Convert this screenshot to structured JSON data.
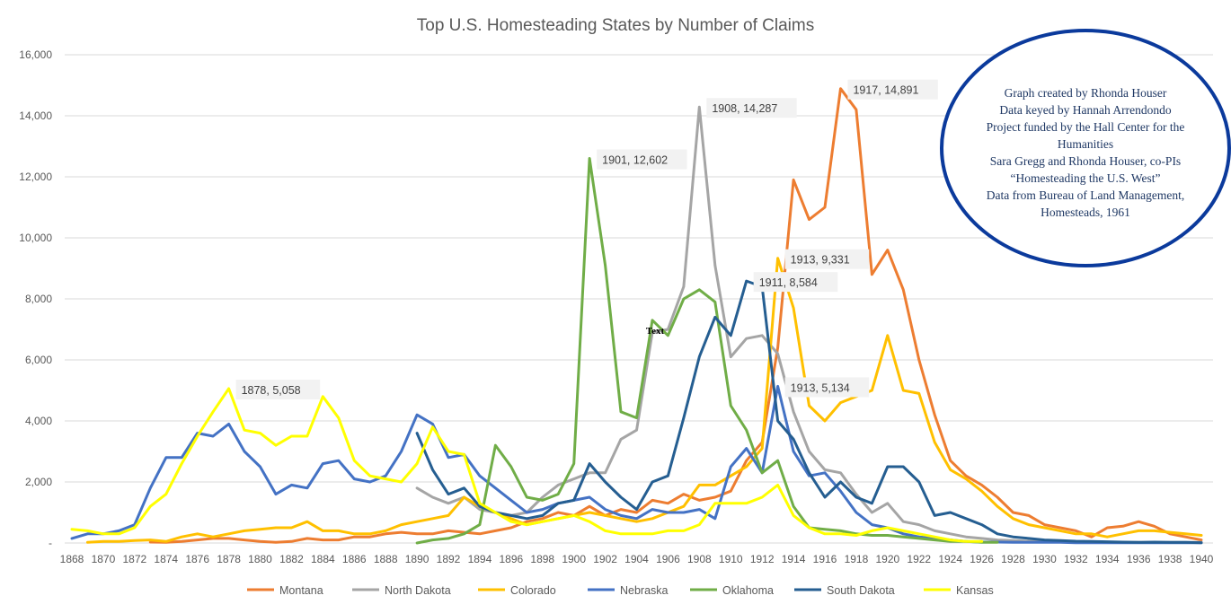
{
  "chart_data": {
    "type": "line",
    "title": "Top U.S. Homesteading States by Number of Claims",
    "xlabel": "",
    "ylabel": "",
    "xlim": [
      1868,
      1940
    ],
    "ylim": [
      0,
      16000
    ],
    "x_ticks": [
      "1868",
      "1870",
      "1872",
      "1874",
      "1876",
      "1878",
      "1880",
      "1882",
      "1884",
      "1886",
      "1888",
      "1890",
      "1892",
      "1894",
      "1896",
      "1898",
      "1900",
      "1902",
      "1904",
      "1906",
      "1908",
      "1910",
      "1912",
      "1914",
      "1916",
      "1918",
      "1920",
      "1922",
      "1924",
      "1926",
      "1928",
      "1930",
      "1932",
      "1934",
      "1936",
      "1938",
      "1940"
    ],
    "y_ticks": [
      {
        "value": 16000,
        "label": "16,000"
      },
      {
        "value": 14000,
        "label": "14,000"
      },
      {
        "value": 12000,
        "label": "12,000"
      },
      {
        "value": 10000,
        "label": "10,000"
      },
      {
        "value": 8000,
        "label": "8,000"
      },
      {
        "value": 6000,
        "label": "6,000"
      },
      {
        "value": 4000,
        "label": "4,000"
      },
      {
        "value": 2000,
        "label": "2,000"
      },
      {
        "value": 0,
        "label": "-"
      }
    ],
    "grid": true,
    "legend_position": "bottom",
    "series": [
      {
        "name": "Montana",
        "color": "#ED7D31",
        "x": [
          1873,
          1874,
          1875,
          1876,
          1877,
          1878,
          1879,
          1880,
          1881,
          1882,
          1883,
          1884,
          1885,
          1886,
          1887,
          1888,
          1889,
          1890,
          1891,
          1892,
          1893,
          1894,
          1895,
          1896,
          1897,
          1898,
          1899,
          1900,
          1901,
          1902,
          1903,
          1904,
          1905,
          1906,
          1907,
          1908,
          1909,
          1910,
          1911,
          1912,
          1913,
          1914,
          1915,
          1916,
          1917,
          1918,
          1919,
          1920,
          1921,
          1922,
          1923,
          1924,
          1925,
          1926,
          1927,
          1928,
          1929,
          1930,
          1931,
          1932,
          1933,
          1934,
          1935,
          1936,
          1937,
          1938,
          1939,
          1940
        ],
        "y": [
          30,
          20,
          50,
          100,
          150,
          150,
          100,
          50,
          20,
          50,
          150,
          100,
          100,
          200,
          200,
          300,
          350,
          300,
          300,
          400,
          350,
          300,
          400,
          500,
          700,
          800,
          1000,
          900,
          1200,
          900,
          1100,
          1000,
          1400,
          1300,
          1600,
          1400,
          1500,
          1700,
          2700,
          3300,
          6400,
          11900,
          10600,
          11000,
          14891,
          14200,
          8800,
          9600,
          8300,
          6000,
          4200,
          2700,
          2200,
          1900,
          1500,
          1000,
          900,
          600,
          500,
          400,
          200,
          500,
          550,
          700,
          550,
          300,
          200,
          100
        ]
      },
      {
        "name": "North Dakota",
        "color": "#A5A5A5",
        "x": [
          1890,
          1891,
          1892,
          1893,
          1894,
          1895,
          1896,
          1897,
          1898,
          1899,
          1900,
          1901,
          1902,
          1903,
          1904,
          1905,
          1906,
          1907,
          1908,
          1909,
          1910,
          1911,
          1912,
          1913,
          1914,
          1915,
          1916,
          1917,
          1918,
          1919,
          1920,
          1921,
          1922,
          1923,
          1924,
          1925,
          1926,
          1927,
          1928,
          1929,
          1930,
          1931,
          1932,
          1933,
          1934,
          1935,
          1936,
          1937,
          1938,
          1939,
          1940
        ],
        "y": [
          1800,
          1500,
          1300,
          1500,
          1100,
          1000,
          900,
          1000,
          1500,
          1900,
          2100,
          2300,
          2300,
          3400,
          3700,
          6900,
          7000,
          8400,
          14287,
          9100,
          6100,
          6700,
          6800,
          6200,
          4300,
          3000,
          2400,
          2300,
          1600,
          1000,
          1300,
          700,
          600,
          400,
          300,
          200,
          150,
          100,
          80,
          60,
          50,
          40,
          30,
          20,
          20,
          20,
          20,
          20,
          20,
          20,
          20
        ]
      },
      {
        "name": "Colorado",
        "color": "#FFC000",
        "x": [
          1869,
          1870,
          1871,
          1872,
          1873,
          1874,
          1875,
          1876,
          1877,
          1878,
          1879,
          1880,
          1881,
          1882,
          1883,
          1884,
          1885,
          1886,
          1887,
          1888,
          1889,
          1890,
          1891,
          1892,
          1893,
          1894,
          1895,
          1896,
          1897,
          1898,
          1899,
          1900,
          1901,
          1902,
          1903,
          1904,
          1905,
          1906,
          1907,
          1908,
          1909,
          1910,
          1911,
          1912,
          1913,
          1914,
          1915,
          1916,
          1917,
          1918,
          1919,
          1920,
          1921,
          1922,
          1923,
          1924,
          1925,
          1926,
          1927,
          1928,
          1929,
          1930,
          1931,
          1932,
          1933,
          1934,
          1935,
          1936,
          1937,
          1938,
          1939,
          1940
        ],
        "y": [
          20,
          50,
          50,
          80,
          100,
          50,
          200,
          300,
          200,
          300,
          400,
          450,
          500,
          500,
          700,
          400,
          400,
          300,
          300,
          400,
          600,
          700,
          800,
          900,
          1500,
          1200,
          1000,
          800,
          600,
          700,
          800,
          900,
          1000,
          900,
          800,
          700,
          800,
          1000,
          1200,
          1900,
          1900,
          2200,
          2500,
          3100,
          9331,
          7700,
          4500,
          4000,
          4600,
          4800,
          5000,
          6800,
          5000,
          4900,
          3300,
          2400,
          2100,
          1700,
          1200,
          800,
          600,
          500,
          400,
          300,
          300,
          200,
          300,
          400,
          400,
          350,
          300,
          250
        ]
      },
      {
        "name": "Nebraska",
        "color": "#4472C4",
        "x": [
          1868,
          1869,
          1870,
          1871,
          1872,
          1873,
          1874,
          1875,
          1876,
          1877,
          1878,
          1879,
          1880,
          1881,
          1882,
          1883,
          1884,
          1885,
          1886,
          1887,
          1888,
          1889,
          1890,
          1891,
          1892,
          1893,
          1894,
          1895,
          1896,
          1897,
          1898,
          1899,
          1900,
          1901,
          1902,
          1903,
          1904,
          1905,
          1906,
          1907,
          1908,
          1909,
          1910,
          1911,
          1912,
          1913,
          1914,
          1915,
          1916,
          1917,
          1918,
          1919,
          1920,
          1921,
          1922,
          1923,
          1924,
          1925,
          1926,
          1927,
          1928,
          1929,
          1930,
          1931,
          1932,
          1933,
          1934,
          1935,
          1936,
          1937,
          1938,
          1939,
          1940
        ],
        "y": [
          150,
          300,
          300,
          400,
          600,
          1800,
          2800,
          2800,
          3600,
          3500,
          3900,
          3000,
          2500,
          1600,
          1900,
          1800,
          2600,
          2700,
          2100,
          2000,
          2200,
          3000,
          4200,
          3900,
          2800,
          2900,
          2200,
          1800,
          1400,
          1000,
          1100,
          1300,
          1400,
          1500,
          1100,
          900,
          800,
          1100,
          1000,
          1000,
          1100,
          800,
          2500,
          3100,
          2300,
          5134,
          3000,
          2200,
          2300,
          1700,
          1000,
          600,
          500,
          300,
          200,
          150,
          100,
          50,
          30,
          30,
          20,
          20,
          20,
          20,
          10,
          10,
          10,
          10,
          10,
          10,
          10,
          10,
          10
        ]
      },
      {
        "name": "Oklahoma",
        "color": "#70AD47",
        "x": [
          1890,
          1891,
          1892,
          1893,
          1894,
          1895,
          1896,
          1897,
          1898,
          1899,
          1900,
          1901,
          1902,
          1903,
          1904,
          1905,
          1906,
          1907,
          1908,
          1909,
          1910,
          1911,
          1912,
          1913,
          1914,
          1915,
          1916,
          1917,
          1918,
          1919,
          1920,
          1921,
          1922,
          1923,
          1924,
          1925,
          1926,
          1927
        ],
        "y": [
          0,
          100,
          150,
          300,
          600,
          3200,
          2500,
          1500,
          1400,
          1600,
          2600,
          12602,
          9100,
          4300,
          4100,
          7300,
          6800,
          8000,
          8300,
          7900,
          4500,
          3700,
          2300,
          2700,
          1200,
          500,
          450,
          400,
          300,
          250,
          250,
          200,
          150,
          100,
          50,
          50,
          20,
          20
        ]
      },
      {
        "name": "South Dakota",
        "color": "#255E91",
        "x": [
          1890,
          1891,
          1892,
          1893,
          1894,
          1895,
          1896,
          1897,
          1898,
          1899,
          1900,
          1901,
          1902,
          1903,
          1904,
          1905,
          1906,
          1907,
          1908,
          1909,
          1910,
          1911,
          1912,
          1913,
          1914,
          1915,
          1916,
          1917,
          1918,
          1919,
          1920,
          1921,
          1922,
          1923,
          1924,
          1925,
          1926,
          1927,
          1928,
          1929,
          1930,
          1931,
          1932,
          1933,
          1934,
          1935,
          1936,
          1937,
          1938,
          1939,
          1940
        ],
        "y": [
          3600,
          2400,
          1600,
          1800,
          1200,
          1000,
          900,
          800,
          900,
          1300,
          1400,
          2600,
          2000,
          1500,
          1100,
          2000,
          2200,
          4100,
          6100,
          7400,
          6800,
          8584,
          8400,
          4000,
          3400,
          2300,
          1500,
          2000,
          1500,
          1300,
          2500,
          2500,
          2000,
          900,
          1000,
          800,
          600,
          300,
          200,
          150,
          100,
          80,
          60,
          50,
          40,
          30,
          20,
          30,
          20,
          20,
          10
        ]
      },
      {
        "name": "Kansas",
        "color": "#FFFF00",
        "x": [
          1868,
          1869,
          1870,
          1871,
          1872,
          1873,
          1874,
          1875,
          1876,
          1877,
          1878,
          1879,
          1880,
          1881,
          1882,
          1883,
          1884,
          1885,
          1886,
          1887,
          1888,
          1889,
          1890,
          1891,
          1892,
          1893,
          1894,
          1895,
          1896,
          1897,
          1898,
          1899,
          1900,
          1901,
          1902,
          1903,
          1904,
          1905,
          1906,
          1907,
          1908,
          1909,
          1910,
          1911,
          1912,
          1913,
          1914,
          1915,
          1916,
          1917,
          1918,
          1919,
          1920,
          1921,
          1922,
          1923,
          1924,
          1925,
          1926
        ],
        "y": [
          450,
          400,
          300,
          300,
          500,
          1200,
          1600,
          2600,
          3500,
          4300,
          5058,
          3700,
          3600,
          3200,
          3500,
          3500,
          4800,
          4100,
          2700,
          2200,
          2100,
          2000,
          2600,
          3800,
          3000,
          2900,
          1300,
          1000,
          700,
          600,
          700,
          800,
          900,
          700,
          400,
          300,
          300,
          300,
          400,
          400,
          600,
          1300,
          1300,
          1300,
          1500,
          1900,
          900,
          500,
          300,
          300,
          250,
          400,
          500,
          400,
          300,
          200,
          100,
          50,
          50
        ]
      }
    ],
    "annotations": [
      {
        "x": 1878,
        "y": 5058,
        "label": "1878,  5,058"
      },
      {
        "x": 1901,
        "y": 12602,
        "label": "1901,  12,602"
      },
      {
        "x": 1908,
        "y": 14287,
        "label": "1908,  14,287"
      },
      {
        "x": 1911,
        "y": 8584,
        "label": "1911,  8,584"
      },
      {
        "x": 1913,
        "y": 9331,
        "label": "1913,  9,331"
      },
      {
        "x": 1913,
        "y": 5134,
        "label": "1913,  5,134"
      },
      {
        "x": 1917,
        "y": 14891,
        "label": "1917,  14,891"
      }
    ],
    "stray_text": "Text",
    "credits": [
      "Graph created by Rhonda Houser",
      "Data keyed by Hannah Arrendondo",
      "Project funded by the Hall Center for the",
      "Humanities",
      "Sara Gregg and Rhonda Houser, co-PIs",
      "“Homesteading the U.S. West”",
      "Data from Bureau of Land Management,",
      "Homesteads, 1961"
    ],
    "credit_border_color": "#0B3A9C"
  }
}
